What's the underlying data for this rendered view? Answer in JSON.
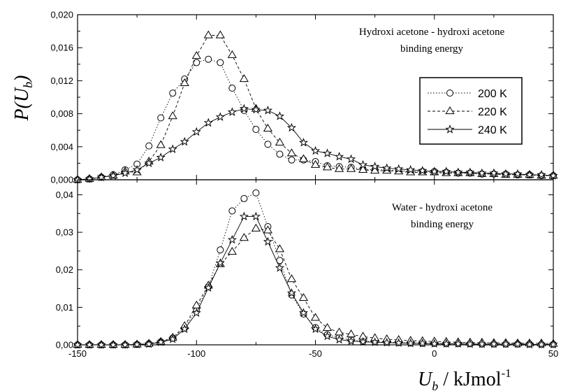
{
  "chart_data": [
    {
      "type": "line",
      "panel": "top",
      "ylabel": "P(U_b)",
      "ylabel_main": "P(U",
      "ylabel_sub": "b",
      "ylabel_close": ")",
      "ylim": [
        0,
        0.02
      ],
      "xlim": [
        -150,
        50
      ],
      "yticks": [
        0,
        0.004,
        0.008,
        0.012,
        0.016,
        0.02
      ],
      "ytick_labels": [
        "0,000",
        "0,004",
        "0,008",
        "0,012",
        "0,016",
        "0,020"
      ],
      "annotation": [
        "Hydroxi acetone - hydroxi acetone",
        "binding energy"
      ],
      "legend": {
        "placement": "right",
        "entries": [
          "200 K",
          "220 K",
          "240 K"
        ]
      },
      "x": [
        -150,
        -145,
        -140,
        -135,
        -130,
        -125,
        -120,
        -115,
        -110,
        -105,
        -100,
        -95,
        -90,
        -85,
        -80,
        -75,
        -70,
        -65,
        -60,
        -55,
        -50,
        -45,
        -40,
        -35,
        -30,
        -25,
        -20,
        -15,
        -10,
        -5,
        0,
        5,
        10,
        15,
        20,
        25,
        30,
        35,
        40,
        45,
        50
      ],
      "series": [
        {
          "name": "200 K",
          "marker": "circle",
          "dash": "dotted",
          "values": [
            0,
            0.0001,
            0.0003,
            0.0006,
            0.0012,
            0.0019,
            0.0041,
            0.0075,
            0.0105,
            0.0122,
            0.0142,
            0.0146,
            0.0142,
            0.0111,
            0.0084,
            0.0061,
            0.0043,
            0.0031,
            0.0024,
            0.0024,
            0.0022,
            0.0017,
            0.0016,
            0.0015,
            0.0013,
            0.0012,
            0.0012,
            0.0011,
            0.001,
            0.001,
            0.001,
            0.0009,
            0.0008,
            0.0008,
            0.0007,
            0.0007,
            0.0007,
            0.0006,
            0.0006,
            0.0005,
            0.0005
          ]
        },
        {
          "name": "220 K",
          "marker": "triangle",
          "dash": "dashed",
          "values": [
            0,
            0.0001,
            0.0003,
            0.0005,
            0.001,
            0.0009,
            0.0022,
            0.0042,
            0.0077,
            0.0117,
            0.015,
            0.0175,
            0.0175,
            0.0151,
            0.0122,
            0.0086,
            0.0062,
            0.0045,
            0.0032,
            0.0025,
            0.0018,
            0.0015,
            0.0013,
            0.0013,
            0.0012,
            0.0011,
            0.0011,
            0.001,
            0.0009,
            0.0009,
            0.0009,
            0.0008,
            0.0008,
            0.0008,
            0.0007,
            0.0007,
            0.0006,
            0.0006,
            0.0006,
            0.0005,
            0.0005
          ]
        },
        {
          "name": "240 K",
          "marker": "star",
          "dash": "solid",
          "values": [
            0,
            0.0001,
            0.0003,
            0.0005,
            0.0008,
            0.0012,
            0.002,
            0.0027,
            0.0037,
            0.0046,
            0.0058,
            0.0069,
            0.0076,
            0.0082,
            0.0086,
            0.0085,
            0.0084,
            0.0077,
            0.0063,
            0.0045,
            0.0035,
            0.0032,
            0.0028,
            0.0025,
            0.0018,
            0.0016,
            0.0014,
            0.0013,
            0.0012,
            0.0011,
            0.001,
            0.001,
            0.0009,
            0.0009,
            0.0008,
            0.0008,
            0.0007,
            0.0007,
            0.0006,
            0.0006,
            0.0005
          ]
        }
      ]
    },
    {
      "type": "line",
      "panel": "bottom",
      "ylim": [
        0,
        0.044
      ],
      "xlim": [
        -150,
        50
      ],
      "yticks": [
        0,
        0.01,
        0.02,
        0.03,
        0.04
      ],
      "ytick_labels": [
        "0,00",
        "0,01",
        "0,02",
        "0,03",
        "0,04"
      ],
      "xticks": [
        -150,
        -100,
        -50,
        0,
        50
      ],
      "xtick_labels": [
        "-150",
        "-100",
        "-50",
        "0",
        "50"
      ],
      "xlabel": "U_b / kJmol^-1",
      "xlabel_main": "U",
      "xlabel_sub": "b",
      "xlabel_unit": " / kJmol",
      "xlabel_sup": "-1",
      "annotation": [
        "Water - hydroxi acetone",
        "binding energy"
      ],
      "x": [
        -150,
        -145,
        -140,
        -135,
        -130,
        -125,
        -120,
        -115,
        -110,
        -105,
        -100,
        -95,
        -90,
        -85,
        -80,
        -75,
        -70,
        -65,
        -60,
        -55,
        -50,
        -45,
        -40,
        -35,
        -30,
        -25,
        -20,
        -15,
        -10,
        -5,
        0,
        5,
        10,
        15,
        20,
        25,
        30,
        35,
        40,
        45,
        50
      ],
      "series": [
        {
          "name": "200 K",
          "marker": "circle",
          "dash": "dotted",
          "values": [
            0,
            0,
            0,
            0,
            0,
            0.0001,
            0.0003,
            0.0008,
            0.0018,
            0.0045,
            0.0095,
            0.0155,
            0.0253,
            0.0357,
            0.039,
            0.0405,
            0.0315,
            0.0225,
            0.0133,
            0.0082,
            0.0046,
            0.0027,
            0.0019,
            0.0013,
            0.001,
            0.0008,
            0.0007,
            0.0006,
            0.0005,
            0.0004,
            0.0004,
            0.0003,
            0.0003,
            0.0003,
            0.0002,
            0.0002,
            0.0002,
            0.0002,
            0.0002,
            0.0001,
            0.0001
          ]
        },
        {
          "name": "220 K",
          "marker": "triangle",
          "dash": "dashed",
          "values": [
            0,
            0,
            0,
            0,
            0,
            0.0001,
            0.0003,
            0.0008,
            0.0019,
            0.005,
            0.0105,
            0.0158,
            0.0215,
            0.0248,
            0.0285,
            0.031,
            0.0305,
            0.0255,
            0.0175,
            0.0125,
            0.0072,
            0.0045,
            0.0033,
            0.0028,
            0.0022,
            0.0018,
            0.0015,
            0.0013,
            0.0011,
            0.001,
            0.0009,
            0.0008,
            0.0007,
            0.0006,
            0.0006,
            0.0005,
            0.0005,
            0.0004,
            0.0004,
            0.0004,
            0.0003
          ]
        },
        {
          "name": "240 K",
          "marker": "star",
          "dash": "solid",
          "values": [
            0,
            0,
            0,
            0,
            0,
            0.0001,
            0.0002,
            0.0007,
            0.0015,
            0.0042,
            0.0085,
            0.0152,
            0.0218,
            0.028,
            0.0342,
            0.0342,
            0.0275,
            0.0205,
            0.0138,
            0.0085,
            0.0042,
            0.0023,
            0.0014,
            0.001,
            0.0008,
            0.0007,
            0.0006,
            0.0005,
            0.0004,
            0.0004,
            0.0003,
            0.0003,
            0.0003,
            0.0002,
            0.0002,
            0.0002,
            0.0002,
            0.0002,
            0.0001,
            0.0001,
            0.0001
          ]
        }
      ]
    }
  ]
}
